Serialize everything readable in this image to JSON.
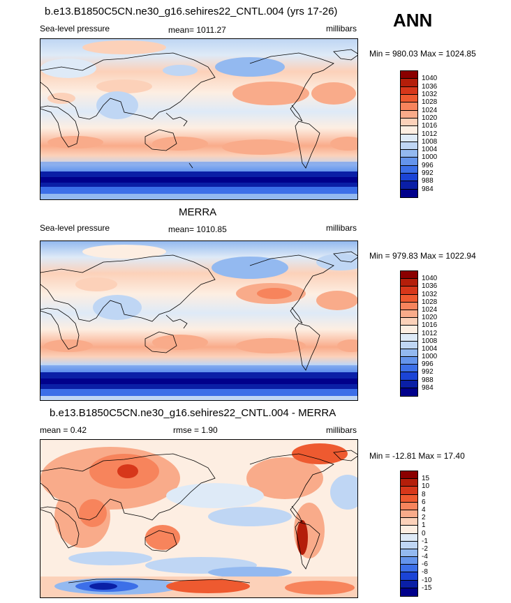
{
  "season": "ANN",
  "panels": [
    {
      "title": "b.e13.B1850C5CN.ne30_g16.sehires22_CNTL.004 (yrs 17-26)",
      "left_label": "Sea-level pressure",
      "center_label": "mean= 1011.27",
      "right_label": "millibars",
      "minmax": "Min = 980.03 Max = 1024.85",
      "colorbar": {
        "labels": [
          "1040",
          "1036",
          "1032",
          "1028",
          "1024",
          "1020",
          "1016",
          "1012",
          "1008",
          "1004",
          "1000",
          "996",
          "992",
          "988",
          "984"
        ],
        "colors": [
          "#8b0000",
          "#b41e0a",
          "#d7371a",
          "#ee5a30",
          "#f7845c",
          "#f9ab8a",
          "#fcd1b9",
          "#fdeee2",
          "#deeaf7",
          "#bfd6f4",
          "#93b9f0",
          "#6494ec",
          "#3c6fe8",
          "#1b44d6",
          "#0a1fa6",
          "#00008b"
        ]
      }
    },
    {
      "title": "MERRA",
      "left_label": "Sea-level pressure",
      "center_label": "mean= 1010.85",
      "right_label": "millibars",
      "minmax": "Min = 979.83 Max = 1022.94",
      "colorbar": {
        "labels": [
          "1040",
          "1036",
          "1032",
          "1028",
          "1024",
          "1020",
          "1016",
          "1012",
          "1008",
          "1004",
          "1000",
          "996",
          "992",
          "988",
          "984"
        ],
        "colors": [
          "#8b0000",
          "#b41e0a",
          "#d7371a",
          "#ee5a30",
          "#f7845c",
          "#f9ab8a",
          "#fcd1b9",
          "#fdeee2",
          "#deeaf7",
          "#bfd6f4",
          "#93b9f0",
          "#6494ec",
          "#3c6fe8",
          "#1b44d6",
          "#0a1fa6",
          "#00008b"
        ]
      }
    },
    {
      "title": "b.e13.B1850C5CN.ne30_g16.sehires22_CNTL.004 - MERRA",
      "left_label": "mean =   0.42",
      "center_label": "rmse =   1.90",
      "right_label": "millibars",
      "minmax": "Min = -12.81 Max =  17.40",
      "colorbar": {
        "labels": [
          "15",
          "10",
          "8",
          "6",
          "4",
          "2",
          "1",
          "0",
          "-1",
          "-2",
          "-4",
          "-6",
          "-8",
          "-10",
          "-15"
        ],
        "colors": [
          "#8b0000",
          "#b41e0a",
          "#d7371a",
          "#ee5a30",
          "#f7845c",
          "#f9ab8a",
          "#fcd1b9",
          "#fdeee2",
          "#deeaf7",
          "#bfd6f4",
          "#93b9f0",
          "#6494ec",
          "#3c6fe8",
          "#1b44d6",
          "#0a1fa6",
          "#00008b"
        ]
      }
    }
  ]
}
